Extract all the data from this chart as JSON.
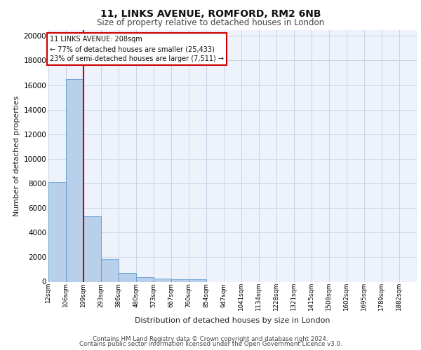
{
  "title_line1": "11, LINKS AVENUE, ROMFORD, RM2 6NB",
  "title_line2": "Size of property relative to detached houses in London",
  "xlabel": "Distribution of detached houses by size in London",
  "ylabel": "Number of detached properties",
  "footer_line1": "Contains HM Land Registry data © Crown copyright and database right 2024.",
  "footer_line2": "Contains public sector information licensed under the Open Government Licence v3.0.",
  "annotation_line1": "11 LINKS AVENUE: 208sqm",
  "annotation_line2": "← 77% of detached houses are smaller (25,433)",
  "annotation_line3": "23% of semi-detached houses are larger (7,511) →",
  "bar_labels": [
    "12sqm",
    "106sqm",
    "199sqm",
    "293sqm",
    "386sqm",
    "480sqm",
    "573sqm",
    "667sqm",
    "760sqm",
    "854sqm",
    "947sqm",
    "1041sqm",
    "1134sqm",
    "1228sqm",
    "1321sqm",
    "1415sqm",
    "1508sqm",
    "1602sqm",
    "1695sqm",
    "1789sqm",
    "1882sqm"
  ],
  "bar_values": [
    8100,
    16500,
    5300,
    1850,
    700,
    350,
    270,
    200,
    175,
    0,
    0,
    0,
    0,
    0,
    0,
    0,
    0,
    0,
    0,
    0,
    0
  ],
  "bar_color": "#b8d0ea",
  "bar_edge_color": "#5b9bd5",
  "grid_color": "#c8d4e8",
  "background_color": "#eef2fa",
  "red_line_x": 2.0,
  "ylim": [
    0,
    20500
  ],
  "yticks": [
    0,
    2000,
    4000,
    6000,
    8000,
    10000,
    12000,
    14000,
    16000,
    18000,
    20000
  ]
}
